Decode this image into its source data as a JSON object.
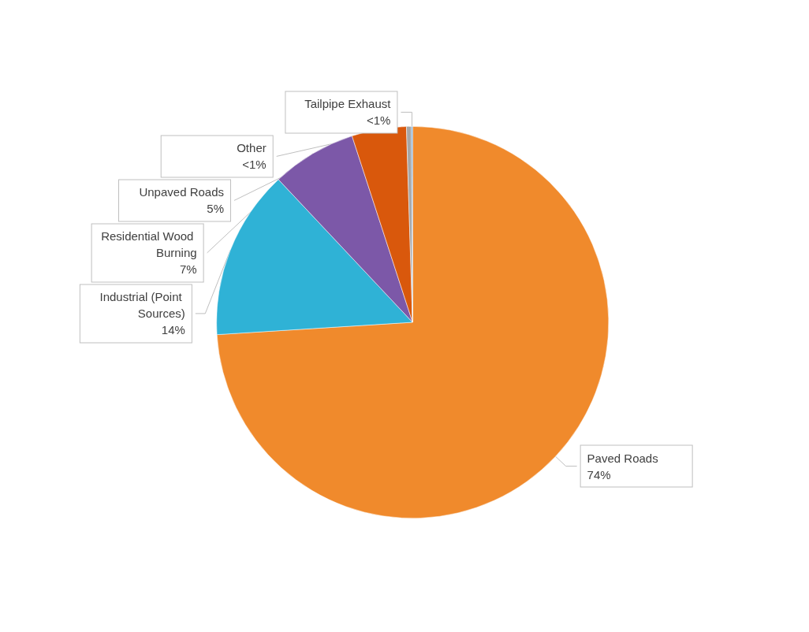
{
  "chart_data": {
    "type": "pie",
    "categories": [
      "Paved Roads",
      "Industrial (Point Sources)",
      "Residential Wood Burning",
      "Unpaved Roads",
      "Other",
      "Tailpipe Exhaust"
    ],
    "values": [
      74,
      14,
      7,
      4.5,
      0.4,
      0.1
    ],
    "value_labels": [
      "74%",
      "14%",
      "7%",
      "5%",
      "<1%",
      "<1%"
    ],
    "colors": [
      "#f08a2c",
      "#2fb2d6",
      "#7c58a8",
      "#d9580c",
      "#a6a6a6",
      "#5b9bd5"
    ],
    "legend": false
  }
}
